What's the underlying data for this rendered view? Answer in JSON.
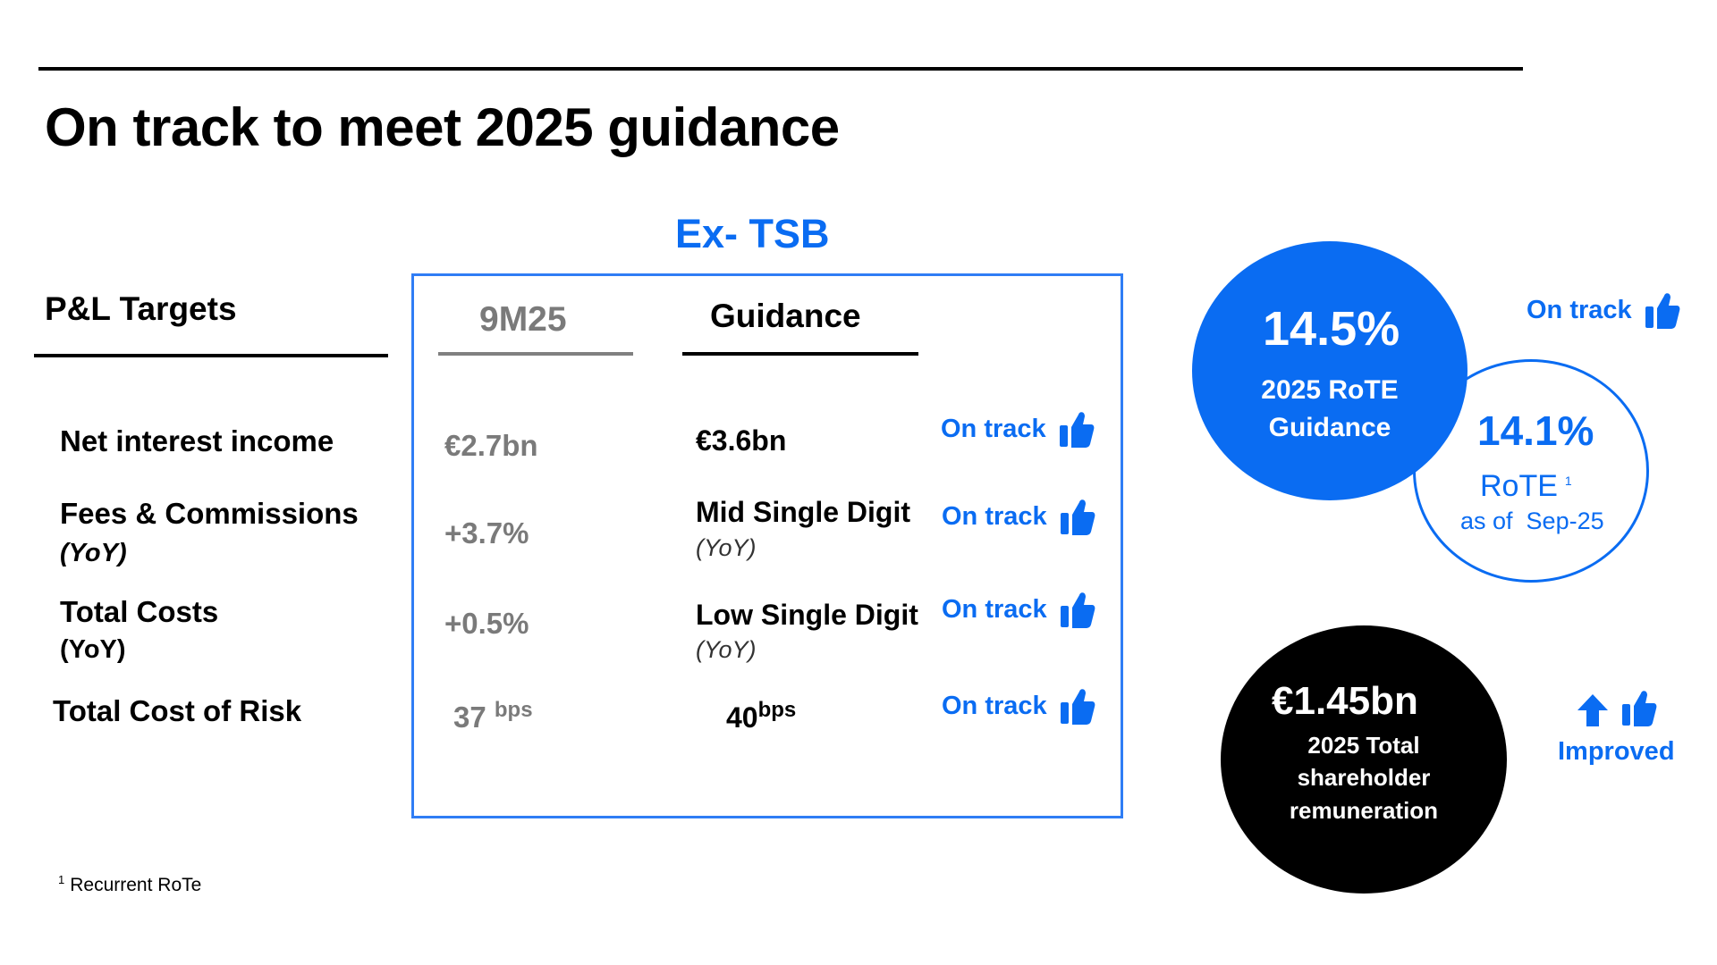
{
  "title": "On track to meet 2025 guidance",
  "section_label": "Ex- TSB",
  "left_header": "P&L Targets",
  "columns": {
    "actual": "9M25",
    "guidance": "Guidance"
  },
  "rows": [
    {
      "label": "Net interest income",
      "sublabel": "",
      "actual": "€2.7bn",
      "guidance": "€3.6bn",
      "guidance_sub": "",
      "status": "On track"
    },
    {
      "label": "Fees & Commissions",
      "sublabel": "(YoY)",
      "actual": "+3.7%",
      "guidance": "Mid Single Digit",
      "guidance_sub": "(YoY)",
      "status": "On track"
    },
    {
      "label": "Total Costs",
      "sublabel": "(YoY)",
      "actual": "+0.5%",
      "guidance": "Low Single Digit",
      "guidance_sub": "(YoY)",
      "status": "On track"
    },
    {
      "label": "Total Cost of Risk",
      "sublabel": "",
      "actual": "37",
      "actual_unit": "bps",
      "guidance": "40",
      "guidance_unit": "bps",
      "status": "On track"
    }
  ],
  "rote_guidance": {
    "value": "14.5%",
    "line1": "2025 RoTE",
    "line2": "Guidance",
    "status": "On track"
  },
  "rote_actual": {
    "value": "14.1%",
    "label": "RoTE",
    "footnote_ref": "1",
    "date": "as of  Sep-25"
  },
  "remuneration": {
    "value": "€1.45bn",
    "line1": "2025 Total",
    "line2": "shareholder",
    "line3": "remuneration",
    "status": "Improved"
  },
  "footnote": {
    "ref": "1",
    "text": "Recurrent RoTe"
  },
  "icons": [
    "thumbs-up-icon",
    "up-arrow-icon"
  ],
  "colors": {
    "accent": "#0a6cf2",
    "text": "#000000",
    "muted": "#7a7a7a"
  }
}
